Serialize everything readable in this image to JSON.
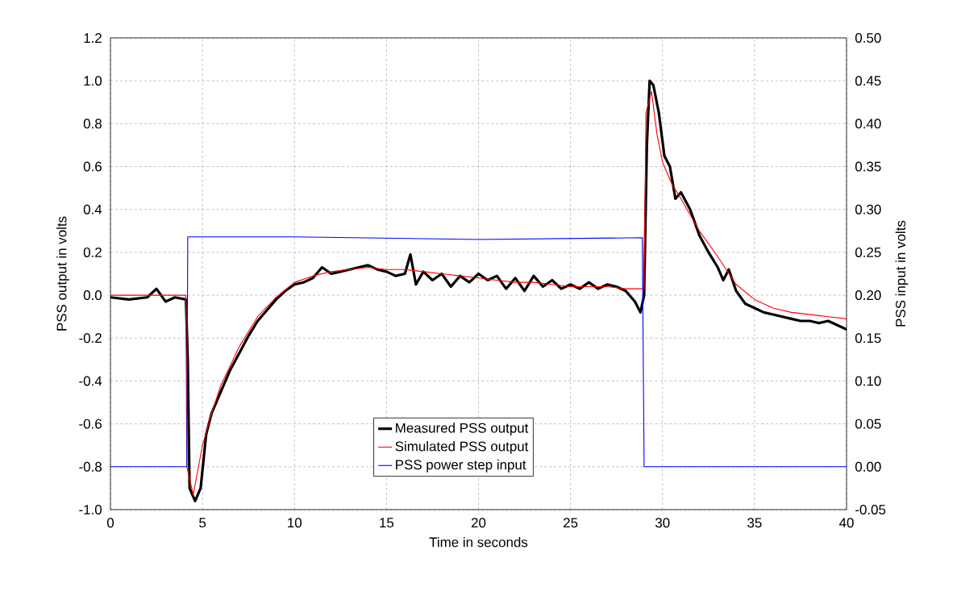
{
  "chart_data": {
    "type": "line",
    "xlabel": "Time in seconds",
    "ylabel": "PSS output in volts",
    "y2label": "PSS input in volts",
    "xlim": [
      0,
      40
    ],
    "xticks": [
      0,
      5,
      10,
      15,
      20,
      25,
      30,
      35,
      40
    ],
    "ylim": [
      -1.0,
      1.2
    ],
    "yticks": [
      {
        "value": -1.0,
        "label": "-1.0"
      },
      {
        "value": -0.8,
        "label": "-0.8"
      },
      {
        "value": -0.6,
        "label": "-0.6"
      },
      {
        "value": -0.4,
        "label": "-0.4"
      },
      {
        "value": -0.2,
        "label": "-0.2"
      },
      {
        "value": 0,
        "label": "0.0"
      },
      {
        "value": 0.2,
        "label": "0.2"
      },
      {
        "value": 0.4,
        "label": "0.4"
      },
      {
        "value": 0.6,
        "label": "0.6"
      },
      {
        "value": 0.8,
        "label": "0.8"
      },
      {
        "value": 1.0,
        "label": "1.0"
      },
      {
        "value": 1.2,
        "label": "1.2"
      }
    ],
    "y2lim": [
      -0.05,
      0.5
    ],
    "y2ticks": [
      {
        "value": -0.05,
        "label": "-0.05"
      },
      {
        "value": 0,
        "label": "0.00"
      },
      {
        "value": 0.05,
        "label": "0.05"
      },
      {
        "value": 0.1,
        "label": "0.10"
      },
      {
        "value": 0.15,
        "label": "0.15"
      },
      {
        "value": 0.2,
        "label": "0.20"
      },
      {
        "value": 0.25,
        "label": "0.25"
      },
      {
        "value": 0.3,
        "label": "0.30"
      },
      {
        "value": 0.35,
        "label": "0.35"
      },
      {
        "value": 0.4,
        "label": "0.40"
      },
      {
        "value": 0.45,
        "label": "0.45"
      },
      {
        "value": 0.5,
        "label": "0.50"
      }
    ],
    "grid": true,
    "legend": "bottom",
    "marker": "none",
    "line_style": "solid",
    "series": [
      {
        "name": "Measured PSS output",
        "color": "#000000",
        "x": [
          0,
          1,
          2,
          2.5,
          3,
          3.5,
          4.1,
          4.2,
          4.3,
          4.6,
          4.9,
          5.2,
          5.5,
          6,
          6.5,
          7,
          7.5,
          8,
          8.5,
          9,
          9.5,
          10,
          10.5,
          11,
          11.5,
          12,
          12.5,
          13,
          13.5,
          14,
          14.5,
          15,
          15.5,
          16,
          16.3,
          16.6,
          17,
          17.5,
          18,
          18.5,
          19,
          19.5,
          20,
          20.5,
          21,
          21.5,
          22,
          22.5,
          23,
          23.5,
          24,
          24.5,
          25,
          25.5,
          26,
          26.5,
          27,
          27.5,
          28,
          28.5,
          28.8,
          29,
          29.15,
          29.3,
          29.5,
          29.8,
          30.1,
          30.4,
          30.7,
          31,
          31.5,
          32,
          32.5,
          33,
          33.3,
          33.6,
          34,
          34.5,
          35,
          35.5,
          36,
          37,
          37.5,
          38,
          38.5,
          39,
          39.5,
          40
        ],
        "values": [
          -0.01,
          -0.02,
          -0.01,
          0.03,
          -0.03,
          -0.01,
          -0.02,
          -0.3,
          -0.9,
          -0.96,
          -0.9,
          -0.65,
          -0.55,
          -0.45,
          -0.35,
          -0.27,
          -0.19,
          -0.12,
          -0.07,
          -0.02,
          0.02,
          0.05,
          0.06,
          0.08,
          0.13,
          0.1,
          0.11,
          0.12,
          0.13,
          0.14,
          0.12,
          0.11,
          0.09,
          0.1,
          0.19,
          0.05,
          0.11,
          0.07,
          0.1,
          0.04,
          0.09,
          0.06,
          0.1,
          0.07,
          0.09,
          0.03,
          0.08,
          0.02,
          0.09,
          0.04,
          0.07,
          0.03,
          0.05,
          0.03,
          0.06,
          0.03,
          0.05,
          0.04,
          0.02,
          -0.03,
          -0.08,
          0.0,
          0.7,
          1.0,
          0.98,
          0.85,
          0.65,
          0.6,
          0.45,
          0.48,
          0.4,
          0.28,
          0.2,
          0.13,
          0.07,
          0.12,
          0.02,
          -0.04,
          -0.06,
          -0.08,
          -0.09,
          -0.11,
          -0.12,
          -0.12,
          -0.13,
          -0.12,
          -0.14,
          -0.16
        ]
      },
      {
        "name": "Simulated PSS output",
        "color": "#ff0000",
        "x": [
          0,
          4.1,
          4.15,
          4.5,
          5,
          5.5,
          6,
          7,
          8,
          9,
          10,
          11,
          12,
          13,
          14,
          15,
          16,
          17,
          18,
          19,
          20,
          21,
          22,
          23,
          24,
          25,
          26,
          27,
          28,
          29,
          29.1,
          29.4,
          29.7,
          30,
          30.5,
          31,
          32,
          33,
          34,
          35,
          36,
          37,
          38,
          39,
          40
        ],
        "values": [
          0.0,
          0.0,
          -0.8,
          -0.93,
          -0.7,
          -0.55,
          -0.42,
          -0.24,
          -0.1,
          -0.01,
          0.06,
          0.09,
          0.11,
          0.12,
          0.13,
          0.12,
          0.12,
          0.11,
          0.1,
          0.09,
          0.08,
          0.07,
          0.06,
          0.06,
          0.05,
          0.04,
          0.04,
          0.04,
          0.03,
          0.03,
          0.85,
          0.95,
          0.75,
          0.62,
          0.52,
          0.45,
          0.3,
          0.18,
          0.05,
          -0.02,
          -0.06,
          -0.08,
          -0.09,
          -0.1,
          -0.11
        ]
      },
      {
        "name": "PSS power step input",
        "color": "#0000ff",
        "axis": "y2",
        "x": [
          0,
          4.15,
          4.2,
          10,
          20,
          28.9,
          29,
          40
        ],
        "values": [
          0,
          0,
          0.268,
          0.268,
          0.265,
          0.267,
          0,
          0
        ]
      }
    ]
  }
}
